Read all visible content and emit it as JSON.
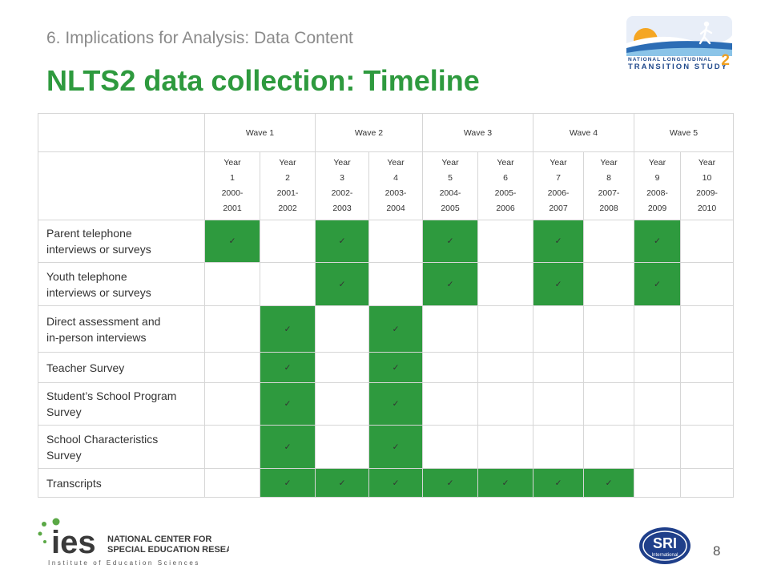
{
  "header": {
    "subtitle": "6. Implications for Analysis: Data Content",
    "title": "NLTS2 data collection: Timeline"
  },
  "logos": {
    "nlts": {
      "line1": "NATIONAL LONGITUDINAL",
      "line2": "TRANSITION STUDY",
      "num": "2"
    },
    "ies": {
      "mark": "ies",
      "line1": "NATIONAL CENTER FOR",
      "line2": "SPECIAL EDUCATION RESEARCH",
      "line3": "Institute of Education Sciences"
    },
    "sri": {
      "mark": "SRI",
      "sub": "International"
    }
  },
  "table": {
    "waves": [
      "Wave 1",
      "Wave 2",
      "Wave 3",
      "Wave 4",
      "Wave 5"
    ],
    "years": [
      {
        "label": "Year",
        "num": "1",
        "range1": "2000-",
        "range2": "2001"
      },
      {
        "label": "Year",
        "num": "2",
        "range1": "2001-",
        "range2": "2002"
      },
      {
        "label": "Year",
        "num": "3",
        "range1": "2002-",
        "range2": "2003"
      },
      {
        "label": "Year",
        "num": "4",
        "range1": "2003-",
        "range2": "2004"
      },
      {
        "label": "Year",
        "num": "5",
        "range1": "2004-",
        "range2": "2005"
      },
      {
        "label": "Year",
        "num": "6",
        "range1": "2005-",
        "range2": "2006"
      },
      {
        "label": "Year",
        "num": "7",
        "range1": "2006-",
        "range2": "2007"
      },
      {
        "label": "Year",
        "num": "8",
        "range1": "2007-",
        "range2": "2008"
      },
      {
        "label": "Year",
        "num": "9",
        "range1": "2008-",
        "range2": "2009"
      },
      {
        "label": "Year",
        "num": "10",
        "range1": "2009-",
        "range2": "2010"
      }
    ],
    "check_symbol": "✓",
    "rows": [
      {
        "label_1": "Parent telephone",
        "label_2": "interviews or surveys",
        "checks": [
          1,
          0,
          1,
          0,
          1,
          0,
          1,
          0,
          1,
          0
        ]
      },
      {
        "label_1": "Youth telephone",
        "label_2": "interviews or surveys",
        "checks": [
          0,
          0,
          1,
          0,
          1,
          0,
          1,
          0,
          1,
          0
        ]
      },
      {
        "label_1": "Direct assessment and",
        "label_2": "in-person interviews",
        "checks": [
          0,
          1,
          0,
          1,
          0,
          0,
          0,
          0,
          0,
          0
        ]
      },
      {
        "label_1": "Teacher Survey",
        "label_2": "",
        "checks": [
          0,
          1,
          0,
          1,
          0,
          0,
          0,
          0,
          0,
          0
        ]
      },
      {
        "label_1": "Student’s School Program",
        "label_2": "Survey",
        "checks": [
          0,
          1,
          0,
          1,
          0,
          0,
          0,
          0,
          0,
          0
        ]
      },
      {
        "label_1": "School Characteristics",
        "label_2": "Survey",
        "checks": [
          0,
          1,
          0,
          1,
          0,
          0,
          0,
          0,
          0,
          0
        ]
      },
      {
        "label_1": "Transcripts",
        "label_2": "",
        "checks": [
          0,
          1,
          1,
          1,
          1,
          1,
          1,
          1,
          0,
          0
        ]
      }
    ]
  },
  "footer": {
    "page_number": "8"
  },
  "colors": {
    "accent_green": "#2e9a3e",
    "subtitle_gray": "#8a8a8a",
    "nlts_blue": "#214a8c",
    "ies_green": "#5aa845",
    "sri_blue": "#1f3f8a"
  }
}
